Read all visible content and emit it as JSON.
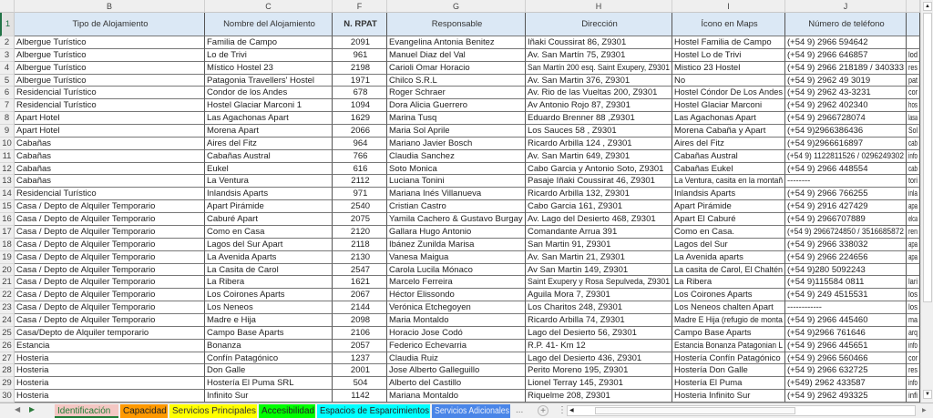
{
  "columns": [
    "B",
    "C",
    "F",
    "G",
    "H",
    "I",
    "J",
    ""
  ],
  "headers": [
    "Tipo de Alojamiento",
    "Nombre del Alojamiento",
    "N. RPAT",
    "Responsable",
    "Dirección",
    "Ícono en Maps",
    "Número de teléfono",
    ""
  ],
  "header_row_number": "1",
  "rows": [
    [
      "2",
      "Albergue Turístico",
      "Familia de Campo",
      "2091",
      "Evangelina Antonia Benitez",
      "Iñaki Coussirat 86, Z9301",
      "Hostel Familia de Campo",
      "(+54 9) 2966 594642",
      ""
    ],
    [
      "3",
      "Albergue Turístico",
      "Lo de Trivi",
      "961",
      "Manuel Diaz del Val",
      "Av. San Martín 75, Z9301",
      "Hostel Lo de Trivi",
      "(+54 9) 2966 646857",
      "lod"
    ],
    [
      "4",
      "Albergue Turístico",
      "Místico Hostel 23",
      "2198",
      "Carioli Omar Horacio",
      "San Martín 200 esq. Saint Exupery, Z9301",
      "Mistico 23 Hostel",
      "(+54 9) 2966 218189 / 340333",
      "res"
    ],
    [
      "5",
      "Albergue Turístico",
      "Patagonia Travellers' Hostel",
      "1971",
      "Chilco S.R.L",
      "Av. San Martin 376, Z9301",
      "No",
      "(+54 9) 2962 49 3019",
      "pat"
    ],
    [
      "6",
      "Residencial Turístico",
      "Condor de los Andes",
      "678",
      "Roger Schraer",
      "Av. Rio de las Vueltas 200, Z9301",
      "Hostel Cóndor De Los Andes",
      "(+54 9) 2962 43-3231",
      "cor"
    ],
    [
      "7",
      "Residencial Turístico",
      "Hostel Glaciar Marconi 1",
      "1094",
      "Dora Alicia Guerrero",
      "Av Antonio Rojo 87, Z9301",
      "Hostel Glaciar Marconi",
      "(+54 9) 2962 402340",
      "hos"
    ],
    [
      "8",
      "Apart Hotel",
      "Las Agachonas Apart",
      "1629",
      "Marina Tusq",
      "Eduardo Brenner 88 ,Z9301",
      "Las Agachonas Apart",
      "(+54 9) 2966728074",
      "lasa"
    ],
    [
      "9",
      "Apart Hotel",
      "Morena Apart",
      "2066",
      "Maria Sol Aprile",
      "Los Sauces 58 , Z9301",
      "Morena Cabaña y Apart",
      "(+54 9)2966386436",
      "Sol"
    ],
    [
      "10",
      "Cabañas",
      "Aires del Fitz",
      "964",
      "Mariano Javier Bosch",
      "Ricardo Arbilla 124 , Z9301",
      "Aires del Fitz",
      "(+54 9)2966616897",
      "cab"
    ],
    [
      "11",
      "Cabañas",
      "Cabañas Austral",
      "766",
      "Claudia Sanchez",
      "Av. San Martin 649, Z9301",
      "Cabañas Austral",
      "(+54 9) 1122811526 / 0296249302",
      "info"
    ],
    [
      "12",
      "Cabañas",
      "Eukel",
      "616",
      "Soto Monica",
      "Cabo Garcia y Antonio Soto, Z9301",
      "Cabañas Eukel",
      "(+54 9) 2966 448554",
      "cab"
    ],
    [
      "13",
      "Cabañas",
      "La Ventura",
      "2112",
      "Luciana Tonini",
      "Pasaje Iñaki Coussirat 46, Z9301",
      "La Ventura, casita en la montañ",
      "--------",
      "tori"
    ],
    [
      "14",
      "Residencial Turístico",
      "Inlandsis Aparts",
      "971",
      "Mariana Inés Villanueva",
      "Ricardo Arbilla 132, Z9301",
      "Inlandsis Aparts",
      "(+54 9) 2966 766255",
      "inla"
    ],
    [
      "15",
      "Casa / Depto de Alquiler Temporario",
      "Apart Pirámide",
      "2540",
      "Cristian Castro",
      "Cabo Garcia 161, Z9301",
      "Apart Pirámide",
      "(+54 9) 2916 427429",
      "apa"
    ],
    [
      "16",
      "Casa / Depto de Alquiler Temporario",
      "Caburé Apart",
      "2075",
      "Yamila Cachero & Gustavo Burgay",
      "Av. Lago del Desierto 468, Z9301",
      "Apart El Caburé",
      "(+54 9) 2966707889",
      "elca"
    ],
    [
      "17",
      "Casa / Depto de Alquiler Temporario",
      "Como en Casa",
      "2120",
      "Gallara Hugo Antonio",
      "Comandante Arrua 391",
      "Como en Casa.",
      "(+54 9) 2966724850 / 3516685872",
      "ren"
    ],
    [
      "18",
      "Casa / Depto de Alquiler Temporario",
      "Lagos del Sur Apart",
      "2118",
      "Ibánez Zunilda Marisa",
      "San Martin 91, Z9301",
      "Lagos del Sur",
      "(+54 9) 2966 338032",
      "apa"
    ],
    [
      "19",
      "Casa / Depto de Alquiler Temporario",
      "La Avenida Aparts",
      "2130",
      "Vanesa Maigua",
      "Av. San Martin 21, Z9301",
      "La Avenida aparts",
      "(+54 9) 2966 224656",
      "apa"
    ],
    [
      "20",
      "Casa / Depto de Alquiler Temporario",
      "La Casita de Carol",
      "2547",
      "Carola Lucila Mónaco",
      "Av San Martin 149, Z9301",
      "La casita de Carol, El Chaltén",
      "(+54 9)280 5092243",
      ""
    ],
    [
      "21",
      "Casa / Depto de Alquiler Temporario",
      "La Ribera",
      "1621",
      "Marcelo Ferreira",
      "Saint Exupery y Rosa Sepulveda, Z9301",
      "La Ribera",
      "(+54 9)115584 0811",
      "lari"
    ],
    [
      "22",
      "Casa / Depto de Alquiler Temporario",
      "Los Coirones Aparts",
      "2067",
      "Héctor Elissondo",
      "Aguila Mora 7, Z9301",
      "Los Coirones Aparts",
      "(+54 9) 249 4515531",
      "los"
    ],
    [
      "23",
      "Casa / Depto de Alquiler Temporario",
      "Los Neneos",
      "2144",
      "Verónica Etchegoyen",
      "Los Charitos 248, Z9301",
      "Los Neneos chalten Apart",
      "------------",
      "los"
    ],
    [
      "24",
      "Casa / Depto de Alquiler Temporario",
      "Madre e Hija",
      "2098",
      "Maria Montaldo",
      "Ricardo Arbilla 74, Z9301",
      "Madre E Hija (refugio de monta",
      "(+54 9) 2966 445460",
      "ma"
    ],
    [
      "25",
      "Casa/Depto de Alquiler temporario",
      "Campo Base Aparts",
      "2106",
      "Horacio Jose Codó",
      "Lago del Desierto 56, Z9301",
      "Campo Base Aparts",
      "(+54 9)2966 761646",
      "arq"
    ],
    [
      "26",
      "Estancia",
      "Bonanza",
      "2057",
      "Federico Echevarria",
      "R.P. 41-  Km 12",
      "Estancia Bonanza Patagonian L",
      "(+54 9) 2966 445651",
      "info"
    ],
    [
      "27",
      "Hosteria",
      "Confín Patagónico",
      "1237",
      "Claudia Ruiz",
      "Lago del Desierto 436, Z9301",
      "Hostería Confín Patagónico",
      "(+54 9) 2966 560466",
      "cor"
    ],
    [
      "28",
      "Hosteria",
      "Don Galle",
      "2001",
      "Jose Alberto Galleguillo",
      "Perito Moreno 195, Z9301",
      "Hostería Don Galle",
      "(+54 9) 2966 632725",
      "res"
    ],
    [
      "29",
      "Hosteria",
      "Hostería El Puma SRL",
      "504",
      "Alberto del Castillo",
      "Lionel Terray 145, Z9301",
      "Hostería El Puma",
      "(+549) 2962 433587",
      "info"
    ],
    [
      "30",
      "Hosteria",
      "Infinito Sur",
      "1142",
      "Mariana Montaldo",
      "Riquelme 208, Z9301",
      "Hosteria Infinito Sur",
      "(+54 9) 2962 493325",
      "infi"
    ]
  ],
  "tabs": [
    {
      "label": "Identificación",
      "bg": "#f4c7c3",
      "color": "#1e7b34",
      "active": true
    },
    {
      "label": "Capacidad",
      "bg": "#ff9900",
      "color": "#222"
    },
    {
      "label": "Servicios Principales",
      "bg": "#ffff00",
      "color": "#333"
    },
    {
      "label": "Accesibilidad",
      "bg": "#00ff00",
      "color": "#222"
    },
    {
      "label": "Espacios de Esparcimientos",
      "bg": "#00ffff",
      "color": "#222"
    },
    {
      "label": "Servicios Adicionales",
      "bg": "#4a86e8",
      "color": "#e8eefc"
    }
  ],
  "tabs_more": "...",
  "add_sheet": "+"
}
